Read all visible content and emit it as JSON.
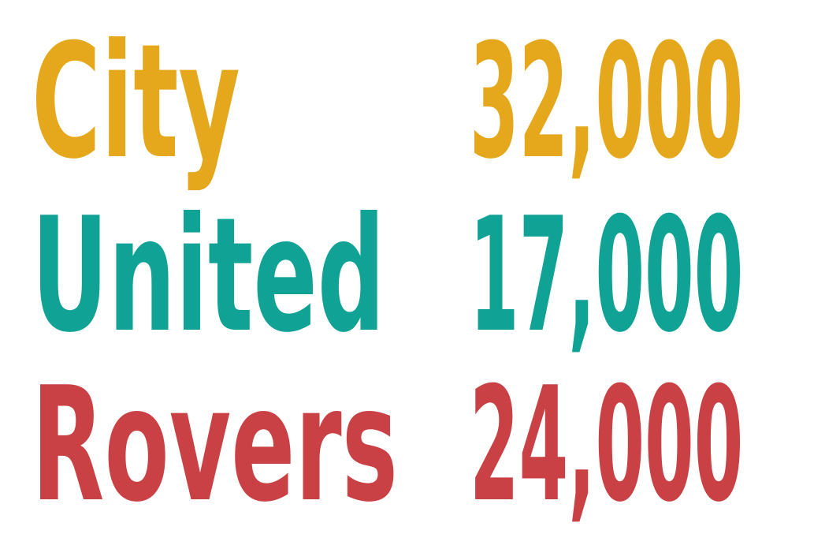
{
  "chart_data": {
    "type": "table",
    "title": "",
    "colors": [
      "#E5A71B",
      "#0FA295",
      "#C94144"
    ],
    "rows": [
      {
        "label": "City",
        "value": 32000,
        "display": "32,000",
        "color": "#E5A71B"
      },
      {
        "label": "United",
        "value": 17000,
        "display": "17,000",
        "color": "#0FA295"
      },
      {
        "label": "Rovers",
        "value": 24000,
        "display": "24,000",
        "color": "#C94144"
      }
    ]
  }
}
